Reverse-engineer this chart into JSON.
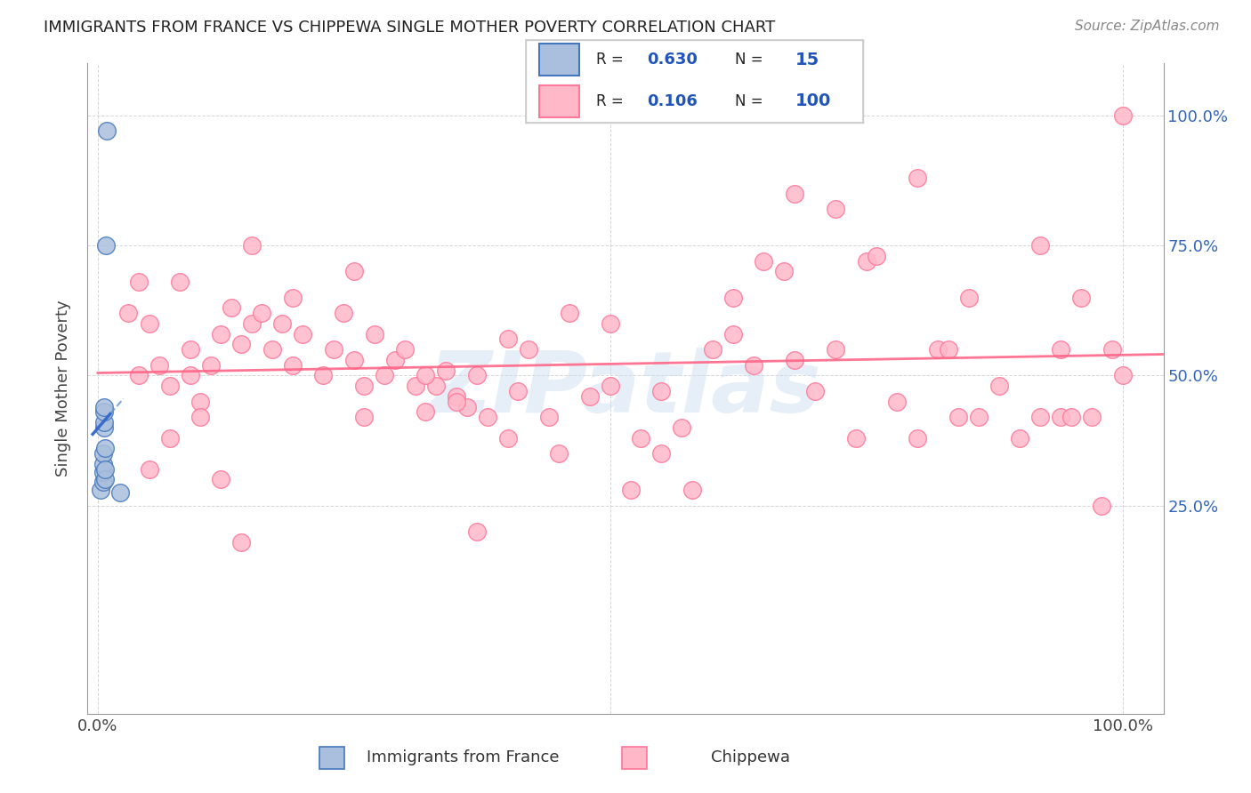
{
  "title": "IMMIGRANTS FROM FRANCE VS CHIPPEWA SINGLE MOTHER POVERTY CORRELATION CHART",
  "source": "Source: ZipAtlas.com",
  "ylabel": "Single Mother Poverty",
  "ytick_labels": [
    "25.0%",
    "50.0%",
    "75.0%",
    "100.0%"
  ],
  "ytick_values": [
    0.25,
    0.5,
    0.75,
    1.0
  ],
  "legend_r1": "0.630",
  "legend_n1": "15",
  "legend_r2": "0.106",
  "legend_n2": "100",
  "color_blue_fill": "#AABFDD",
  "color_blue_edge": "#4477BB",
  "color_pink_fill": "#FFB8C8",
  "color_pink_edge": "#FF7799",
  "trend_blue": "#3366CC",
  "trend_pink": "#FF6688",
  "watermark": "ZIPatlas",
  "france_x": [
    0.003,
    0.005,
    0.005,
    0.005,
    0.005,
    0.006,
    0.006,
    0.006,
    0.006,
    0.007,
    0.007,
    0.007,
    0.008,
    0.009,
    0.022
  ],
  "france_y": [
    0.28,
    0.295,
    0.315,
    0.33,
    0.35,
    0.4,
    0.41,
    0.43,
    0.44,
    0.3,
    0.32,
    0.36,
    0.75,
    0.97,
    0.275
  ],
  "chippewa_x": [
    0.03,
    0.04,
    0.05,
    0.06,
    0.07,
    0.08,
    0.09,
    0.1,
    0.11,
    0.12,
    0.13,
    0.14,
    0.15,
    0.16,
    0.17,
    0.18,
    0.19,
    0.2,
    0.22,
    0.23,
    0.24,
    0.25,
    0.26,
    0.27,
    0.28,
    0.29,
    0.3,
    0.31,
    0.32,
    0.33,
    0.34,
    0.35,
    0.36,
    0.37,
    0.38,
    0.4,
    0.41,
    0.42,
    0.44,
    0.45,
    0.46,
    0.48,
    0.5,
    0.52,
    0.53,
    0.55,
    0.57,
    0.58,
    0.6,
    0.62,
    0.64,
    0.65,
    0.67,
    0.68,
    0.7,
    0.72,
    0.74,
    0.75,
    0.76,
    0.78,
    0.8,
    0.82,
    0.84,
    0.85,
    0.86,
    0.88,
    0.9,
    0.92,
    0.94,
    0.95,
    0.96,
    0.97,
    0.98,
    0.99,
    1.0,
    0.05,
    0.07,
    0.09,
    0.12,
    0.15,
    0.19,
    0.25,
    0.32,
    0.4,
    0.5,
    0.62,
    0.72,
    0.83,
    0.92,
    1.0,
    0.04,
    0.14,
    0.26,
    0.37,
    0.55,
    0.68,
    0.8,
    0.94,
    0.1,
    0.35
  ],
  "chippewa_y": [
    0.62,
    0.5,
    0.6,
    0.52,
    0.48,
    0.68,
    0.55,
    0.45,
    0.52,
    0.58,
    0.63,
    0.56,
    0.6,
    0.62,
    0.55,
    0.6,
    0.52,
    0.58,
    0.5,
    0.55,
    0.62,
    0.53,
    0.48,
    0.58,
    0.5,
    0.53,
    0.55,
    0.48,
    0.43,
    0.48,
    0.51,
    0.46,
    0.44,
    0.5,
    0.42,
    0.57,
    0.47,
    0.55,
    0.42,
    0.35,
    0.62,
    0.46,
    0.48,
    0.28,
    0.38,
    0.47,
    0.4,
    0.28,
    0.55,
    0.65,
    0.52,
    0.72,
    0.7,
    0.53,
    0.47,
    0.55,
    0.38,
    0.72,
    0.73,
    0.45,
    0.38,
    0.55,
    0.42,
    0.65,
    0.42,
    0.48,
    0.38,
    0.42,
    0.42,
    0.42,
    0.65,
    0.42,
    0.25,
    0.55,
    1.0,
    0.32,
    0.38,
    0.5,
    0.3,
    0.75,
    0.65,
    0.7,
    0.5,
    0.38,
    0.6,
    0.58,
    0.82,
    0.55,
    0.75,
    0.5,
    0.68,
    0.18,
    0.42,
    0.2,
    0.35,
    0.85,
    0.88,
    0.55,
    0.42,
    0.45
  ]
}
